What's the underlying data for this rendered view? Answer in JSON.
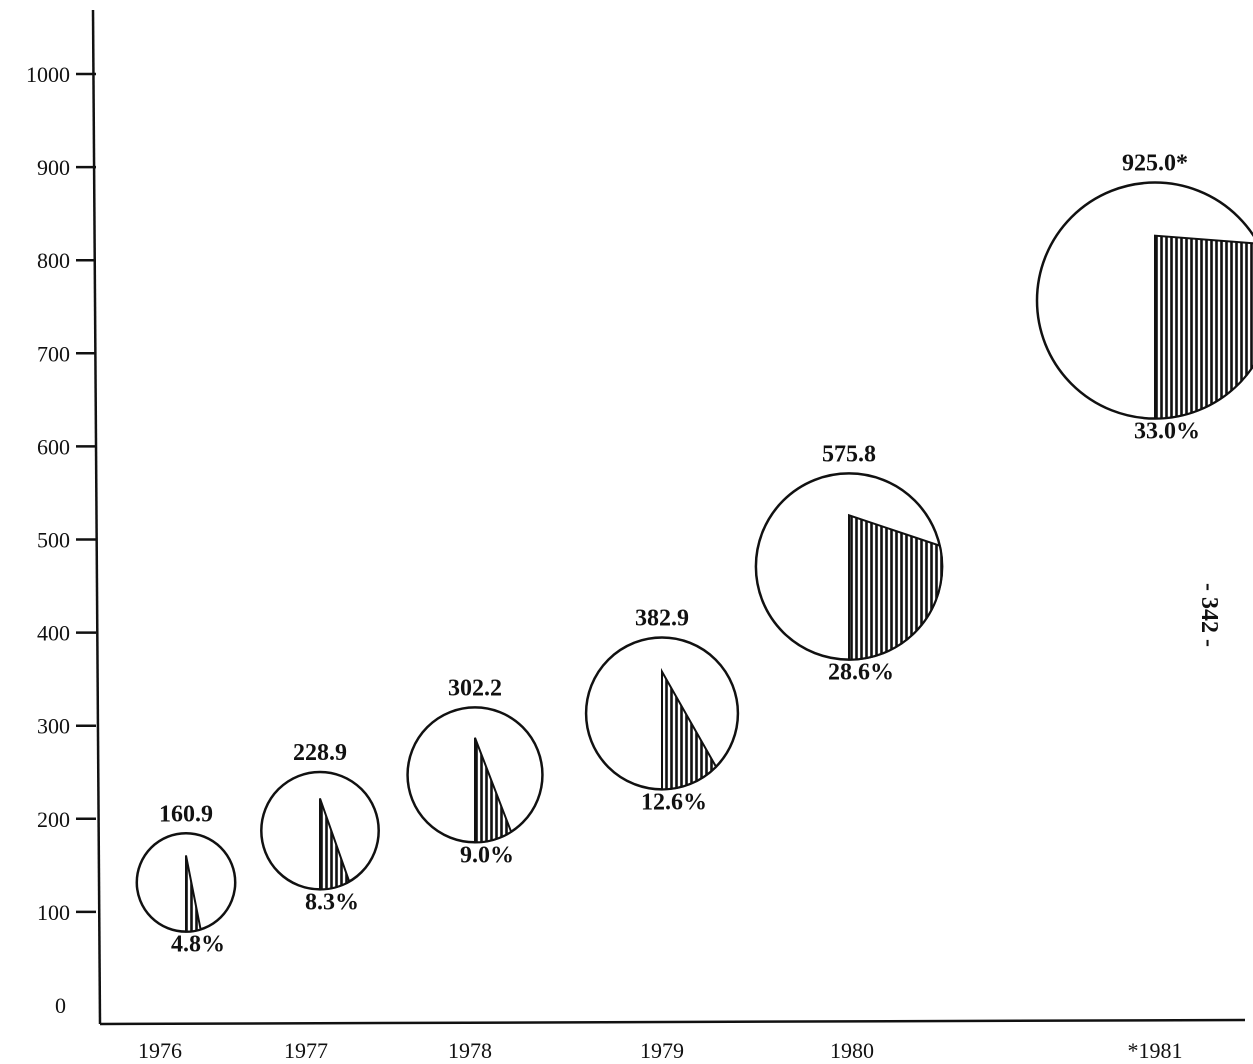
{
  "chart_data": {
    "type": "bubble-pie",
    "x": [
      "1976",
      "1977",
      "1978",
      "1979",
      "1980",
      "*1981"
    ],
    "values": [
      160.9,
      228.9,
      302.2,
      382.9,
      575.8,
      925.0
    ],
    "value_labels": [
      "160.9",
      "228.9",
      "302.2",
      "382.9",
      "575.8",
      "925.0*"
    ],
    "shares_percent": [
      4.8,
      8.3,
      9.0,
      12.6,
      28.6,
      33.0
    ],
    "share_labels": [
      "4.8%",
      "8.3%",
      "9.0%",
      "12.6%",
      "28.6%",
      "33.0%"
    ],
    "y_ticks": [
      "0",
      "100",
      "200",
      "300",
      "400",
      "500",
      "600",
      "700",
      "800",
      "900",
      "1000"
    ],
    "ylim": [
      0,
      1000
    ],
    "title": "",
    "xlabel": "",
    "ylabel": "",
    "grid": false,
    "colors": {
      "ink": "#111111",
      "paper": "#ffffff"
    }
  },
  "page_number": "- 342 -"
}
